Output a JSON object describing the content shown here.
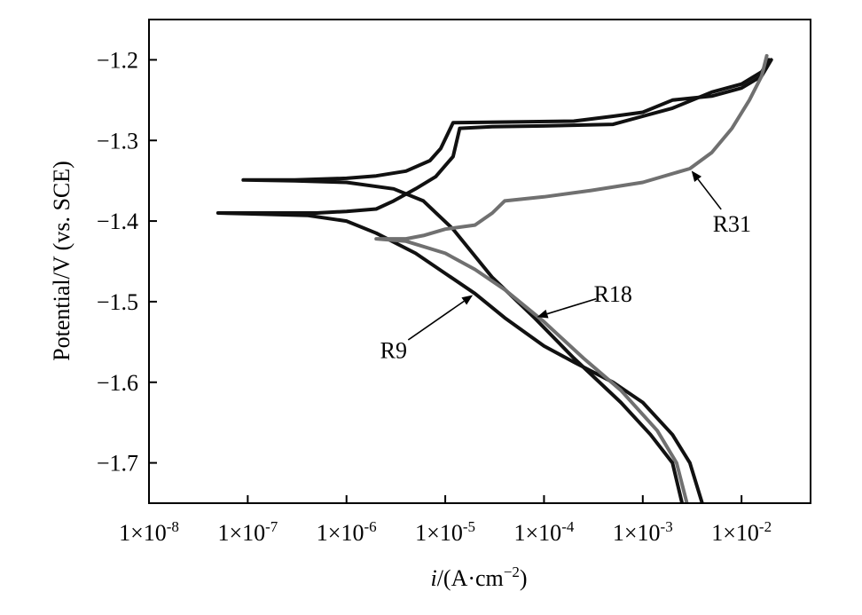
{
  "chart_data": {
    "type": "line",
    "xlabel_base": "i",
    "xlabel_rest": "/(A·cm",
    "xlabel_sup": "−2",
    "xlabel_end": ")",
    "ylabel": "Potential/V (vs. SCE)",
    "xscale": "log",
    "xlim": [
      1e-08,
      0.05
    ],
    "ylim": [
      -1.75,
      -1.15
    ],
    "grid": false,
    "x_ticks": [
      {
        "value": 1e-08,
        "base": "1×10",
        "exp": "-8"
      },
      {
        "value": 1e-07,
        "base": "1×10",
        "exp": "-7"
      },
      {
        "value": 1e-06,
        "base": "1×10",
        "exp": "-6"
      },
      {
        "value": 1e-05,
        "base": "1×10",
        "exp": "-5"
      },
      {
        "value": 0.0001,
        "base": "1×10",
        "exp": "-4"
      },
      {
        "value": 0.001,
        "base": "1×10",
        "exp": "-3"
      },
      {
        "value": 0.01,
        "base": "1×10",
        "exp": "-2"
      }
    ],
    "y_ticks": [
      {
        "value": -1.2,
        "label": "−1.2"
      },
      {
        "value": -1.3,
        "label": "−1.3"
      },
      {
        "value": -1.4,
        "label": "−1.4"
      },
      {
        "value": -1.5,
        "label": "−1.5"
      },
      {
        "value": -1.6,
        "label": "−1.6"
      },
      {
        "value": -1.7,
        "label": "−1.7"
      }
    ],
    "series": [
      {
        "name": "R9",
        "color": "#111111",
        "points": [
          [
            0.004,
            -1.75
          ],
          [
            0.003,
            -1.7
          ],
          [
            0.002,
            -1.665
          ],
          [
            0.001,
            -1.625
          ],
          [
            0.0005,
            -1.6
          ],
          [
            0.0002,
            -1.575
          ],
          [
            0.0001,
            -1.555
          ],
          [
            4e-05,
            -1.52
          ],
          [
            2e-05,
            -1.49
          ],
          [
            1e-05,
            -1.465
          ],
          [
            5e-06,
            -1.44
          ],
          [
            2e-06,
            -1.415
          ],
          [
            1e-06,
            -1.4
          ],
          [
            4e-07,
            -1.393
          ],
          [
            1e-07,
            -1.391
          ],
          [
            5e-08,
            -1.39
          ],
          [
            1e-07,
            -1.39
          ],
          [
            5e-07,
            -1.39
          ],
          [
            1e-06,
            -1.388
          ],
          [
            2e-06,
            -1.385
          ],
          [
            3e-06,
            -1.375
          ],
          [
            5e-06,
            -1.36
          ],
          [
            8e-06,
            -1.345
          ],
          [
            1.2e-05,
            -1.32
          ],
          [
            1.4e-05,
            -1.285
          ],
          [
            3e-05,
            -1.283
          ],
          [
            0.0001,
            -1.282
          ],
          [
            0.0005,
            -1.28
          ],
          [
            0.001,
            -1.27
          ],
          [
            0.002,
            -1.26
          ],
          [
            0.005,
            -1.24
          ],
          [
            0.01,
            -1.23
          ],
          [
            0.016,
            -1.215
          ],
          [
            0.019,
            -1.2
          ]
        ]
      },
      {
        "name": "R18",
        "color": "#111111",
        "points": [
          [
            0.0025,
            -1.75
          ],
          [
            0.002,
            -1.7
          ],
          [
            0.0012,
            -1.665
          ],
          [
            0.0006,
            -1.625
          ],
          [
            0.0002,
            -1.57
          ],
          [
            8e-05,
            -1.52
          ],
          [
            3e-05,
            -1.47
          ],
          [
            1.2e-05,
            -1.41
          ],
          [
            6e-06,
            -1.375
          ],
          [
            3e-06,
            -1.36
          ],
          [
            1e-06,
            -1.352
          ],
          [
            3e-07,
            -1.35
          ],
          [
            9e-08,
            -1.349
          ],
          [
            3e-07,
            -1.349
          ],
          [
            1e-06,
            -1.347
          ],
          [
            2e-06,
            -1.344
          ],
          [
            4e-06,
            -1.338
          ],
          [
            7e-06,
            -1.325
          ],
          [
            9e-06,
            -1.31
          ],
          [
            1.2e-05,
            -1.278
          ],
          [
            5e-05,
            -1.277
          ],
          [
            0.0002,
            -1.276
          ],
          [
            0.0005,
            -1.27
          ],
          [
            0.001,
            -1.265
          ],
          [
            0.002,
            -1.25
          ],
          [
            0.005,
            -1.245
          ],
          [
            0.01,
            -1.235
          ],
          [
            0.016,
            -1.22
          ],
          [
            0.02,
            -1.2
          ]
        ]
      },
      {
        "name": "R31",
        "color": "#707070",
        "points": [
          [
            0.0028,
            -1.75
          ],
          [
            0.0022,
            -1.7
          ],
          [
            0.0014,
            -1.66
          ],
          [
            0.0006,
            -1.61
          ],
          [
            0.00025,
            -1.57
          ],
          [
            0.0001,
            -1.525
          ],
          [
            4e-05,
            -1.485
          ],
          [
            2e-05,
            -1.46
          ],
          [
            1e-05,
            -1.44
          ],
          [
            4e-06,
            -1.425
          ],
          [
            2e-06,
            -1.422
          ],
          [
            4e-06,
            -1.422
          ],
          [
            6e-06,
            -1.418
          ],
          [
            1e-05,
            -1.41
          ],
          [
            2e-05,
            -1.405
          ],
          [
            3e-05,
            -1.39
          ],
          [
            4e-05,
            -1.375
          ],
          [
            0.0001,
            -1.37
          ],
          [
            0.0003,
            -1.362
          ],
          [
            0.001,
            -1.352
          ],
          [
            0.003,
            -1.335
          ],
          [
            0.005,
            -1.315
          ],
          [
            0.008,
            -1.285
          ],
          [
            0.012,
            -1.25
          ],
          [
            0.016,
            -1.22
          ],
          [
            0.018,
            -1.195
          ]
        ]
      }
    ],
    "annotations": [
      {
        "text": "R31",
        "series": "R31",
        "data_x": 0.003,
        "data_y": -1.335,
        "label_x": 0.008,
        "label_y": -1.403
      },
      {
        "text": "R18",
        "series": "R18",
        "data_x": 8e-05,
        "data_y": -1.52,
        "label_x": 0.0005,
        "label_y": -1.49
      },
      {
        "text": "R9",
        "series": "R9",
        "data_x": 2e-05,
        "data_y": -1.49,
        "label_x": 3e-06,
        "label_y": -1.56
      }
    ]
  }
}
